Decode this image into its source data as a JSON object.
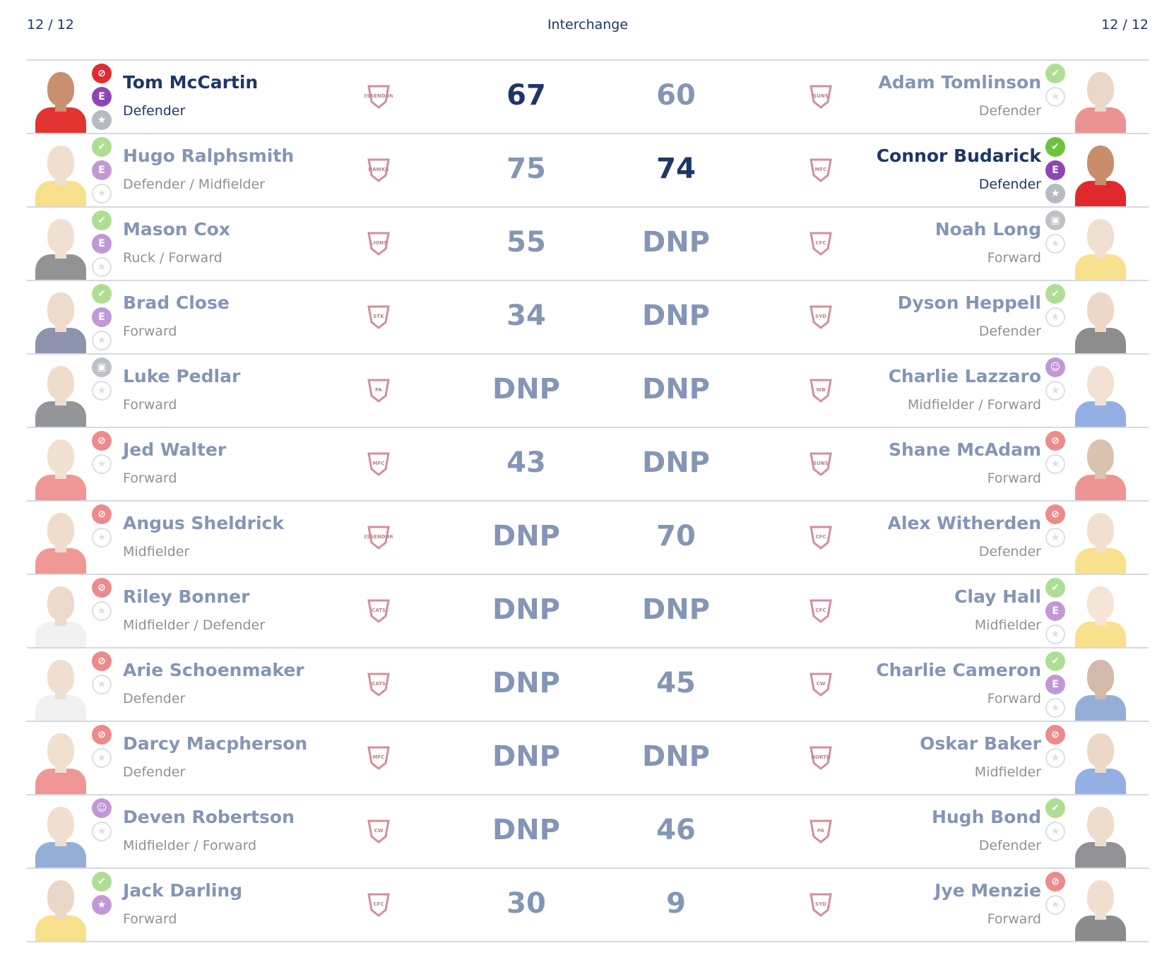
{
  "header": {
    "left_count": "12 / 12",
    "title": "Interchange",
    "right_count": "12 / 12"
  },
  "colors": {
    "navy": "#1e3668",
    "faded_text": "#8496b6",
    "faded_pos": "#8e9196",
    "green": "#6cc43c",
    "purple": "#8f45b3",
    "red": "#e02b30",
    "grey": "#8a8f99"
  },
  "rows": [
    {
      "left": {
        "name": "Tom McCartin",
        "position": "Defender",
        "faded": false,
        "icons": [
          "cross",
          "E",
          "star-grey"
        ],
        "team_logo": "essendon-logo",
        "team_text": "ESSENDON",
        "jersey": "#e33330",
        "head": "#c8906e"
      },
      "left_score": "67",
      "left_score_faded": false,
      "right_score": "60",
      "right_score_faded": true,
      "right": {
        "name": "Adam Tomlinson",
        "position": "Defender",
        "faded": true,
        "icons": [
          "thumb",
          "empty"
        ],
        "team_logo": "gold-coast-suns-logo",
        "team_text": "SUNS",
        "jersey": "#d92a2a",
        "head": "#d8b090"
      }
    },
    {
      "left": {
        "name": "Hugo Ralphsmith",
        "position": "Defender / Midfielder",
        "faded": true,
        "icons": [
          "thumb",
          "E",
          "empty"
        ],
        "team_logo": "hawthorn-logo",
        "team_text": "HAWKS",
        "jersey": "#f2c318",
        "head": "#e3c0a0"
      },
      "left_score": "75",
      "left_score_faded": true,
      "right_score": "74",
      "right_score_faded": false,
      "right": {
        "name": "Connor Budarick",
        "position": "Defender",
        "faded": false,
        "icons": [
          "thumb",
          "E",
          "star-grey"
        ],
        "team_logo": "melbourne-logo",
        "team_text": "MFC",
        "jersey": "#e0292d",
        "head": "#c98d6a"
      }
    },
    {
      "left": {
        "name": "Mason Cox",
        "position": "Ruck / Forward",
        "faded": true,
        "icons": [
          "thumb",
          "E",
          "empty"
        ],
        "team_logo": "brisbane-lions-logo",
        "team_text": "LIONS",
        "jersey": "#2a2a2a",
        "head": "#e2c2a5"
      },
      "left_score": "55",
      "left_score_faded": true,
      "right_score": "DNP",
      "right_score_faded": true,
      "right": {
        "name": "Noah Long",
        "position": "Forward",
        "faded": true,
        "icons": [
          "lock",
          "empty"
        ],
        "team_logo": "carlton-logo",
        "team_text": "CFC",
        "jersey": "#f0c419",
        "head": "#e3c2a3"
      }
    },
    {
      "left": {
        "name": "Brad Close",
        "position": "Forward",
        "faded": true,
        "icons": [
          "thumb",
          "E",
          "empty"
        ],
        "team_logo": "st-kilda-logo",
        "team_text": "STK",
        "jersey": "#1d2c5c",
        "head": "#dcb898"
      },
      "left_score": "34",
      "left_score_faded": true,
      "right_score": "DNP",
      "right_score_faded": true,
      "right": {
        "name": "Dyson Heppell",
        "position": "Defender",
        "faded": true,
        "icons": [
          "thumb",
          "empty"
        ],
        "team_logo": "sydney-swans-logo",
        "team_text": "SYD",
        "jersey": "#1e1e1e",
        "head": "#dcb292"
      }
    },
    {
      "left": {
        "name": "Luke Pedlar",
        "position": "Forward",
        "faded": true,
        "icons": [
          "lock",
          "empty"
        ],
        "team_logo": "port-adelaide-logo",
        "team_text": "PA",
        "jersey": "#2a2e36",
        "head": "#e0bc9b"
      },
      "left_score": "DNP",
      "left_score_faded": true,
      "right_score": "DNP",
      "right_score_faded": true,
      "right": {
        "name": "Charlie Lazzaro",
        "position": "Midfielder / Forward",
        "faded": true,
        "icons": [
          "person",
          "empty"
        ],
        "team_logo": "western-bulldogs-logo",
        "team_text": "WB",
        "jersey": "#2b62c9",
        "head": "#e6c6a8"
      }
    },
    {
      "left": {
        "name": "Jed Walter",
        "position": "Forward",
        "faded": true,
        "icons": [
          "cross",
          "empty"
        ],
        "team_logo": "melbourne-logo",
        "team_text": "MFC",
        "jersey": "#e22f2f",
        "head": "#e5c4a5"
      },
      "left_score": "43",
      "left_score_faded": true,
      "right_score": "DNP",
      "right_score_faded": true,
      "right": {
        "name": "Shane McAdam",
        "position": "Forward",
        "faded": true,
        "icons": [
          "cross",
          "empty"
        ],
        "team_logo": "gold-coast-suns-logo",
        "team_text": "SUNS",
        "jersey": "#de2c2c",
        "head": "#b98864"
      }
    },
    {
      "left": {
        "name": "Angus Sheldrick",
        "position": "Midfielder",
        "faded": true,
        "icons": [
          "cross",
          "empty"
        ],
        "team_logo": "essendon-logo",
        "team_text": "ESSENDON",
        "jersey": "#e33330",
        "head": "#e0bc9a"
      },
      "left_score": "DNP",
      "left_score_faded": true,
      "right_score": "70",
      "right_score_faded": true,
      "right": {
        "name": "Alex Witherden",
        "position": "Defender",
        "faded": true,
        "icons": [
          "cross",
          "empty"
        ],
        "team_logo": "carlton-logo",
        "team_text": "CFC",
        "jersey": "#f2c31c",
        "head": "#e4c3a4"
      }
    },
    {
      "left": {
        "name": "Riley Bonner",
        "position": "Midfielder / Defender",
        "faded": true,
        "icons": [
          "cross",
          "empty"
        ],
        "team_logo": "geelong-cats-logo",
        "team_text": "CATS",
        "jersey": "#e5e5e5",
        "head": "#dcb696"
      },
      "left_score": "DNP",
      "left_score_faded": true,
      "right_score": "DNP",
      "right_score_faded": true,
      "right": {
        "name": "Clay Hall",
        "position": "Midfielder",
        "faded": true,
        "icons": [
          "thumb",
          "E",
          "empty"
        ],
        "team_logo": "carlton-logo",
        "team_text": "CFC",
        "jersey": "#f2c31c",
        "head": "#ebccaf"
      }
    },
    {
      "left": {
        "name": "Arie Schoenmaker",
        "position": "Defender",
        "faded": true,
        "icons": [
          "cross",
          "empty"
        ],
        "team_logo": "geelong-cats-logo",
        "team_text": "CATS",
        "jersey": "#e5e5e5",
        "head": "#e2c0a0"
      },
      "left_score": "DNP",
      "left_score_faded": true,
      "right_score": "45",
      "right_score_faded": true,
      "right": {
        "name": "Charlie Cameron",
        "position": "Forward",
        "faded": true,
        "icons": [
          "thumb",
          "E",
          "empty"
        ],
        "team_logo": "collingwood-logo",
        "team_text": "CW",
        "jersey": "#2c5fb0",
        "head": "#a87657"
      }
    },
    {
      "left": {
        "name": "Darcy Macpherson",
        "position": "Defender",
        "faded": true,
        "icons": [
          "cross",
          "empty"
        ],
        "team_logo": "melbourne-logo",
        "team_text": "MFC",
        "jersey": "#e22f2f",
        "head": "#e3c2a3"
      },
      "left_score": "DNP",
      "left_score_faded": true,
      "right_score": "DNP",
      "right_score_faded": true,
      "right": {
        "name": "Oskar Baker",
        "position": "Midfielder",
        "faded": true,
        "icons": [
          "cross",
          "empty"
        ],
        "team_logo": "north-melbourne-logo",
        "team_text": "NORTH",
        "jersey": "#2b62c9",
        "head": "#d9b291"
      }
    },
    {
      "left": {
        "name": "Deven Robertson",
        "position": "Midfielder / Forward",
        "faded": true,
        "icons": [
          "person",
          "empty"
        ],
        "team_logo": "collingwood-logo",
        "team_text": "CW",
        "jersey": "#2c5fb0",
        "head": "#e2c0a0"
      },
      "left_score": "DNP",
      "left_score_faded": true,
      "right_score": "46",
      "right_score_faded": true,
      "right": {
        "name": "Hugh Bond",
        "position": "Defender",
        "faded": true,
        "icons": [
          "thumb",
          "empty"
        ],
        "team_logo": "port-adelaide-logo",
        "team_text": "PA",
        "jersey": "#23272e",
        "head": "#e0bc9b"
      }
    },
    {
      "left": {
        "name": "Jack Darling",
        "position": "Forward",
        "faded": true,
        "icons": [
          "thumb",
          "star-purple"
        ],
        "team_logo": "carlton-logo",
        "team_text": "CFC",
        "jersey": "#f2c31c",
        "head": "#d9b090"
      },
      "left_score": "30",
      "left_score_faded": true,
      "right_score": "9",
      "right_score_faded": true,
      "right": {
        "name": "Jye Menzie",
        "position": "Forward",
        "faded": true,
        "icons": [
          "cross",
          "empty"
        ],
        "team_logo": "sydney-swans-logo",
        "team_text": "SYD",
        "jersey": "#1c1c1c",
        "head": "#e2c0a0"
      }
    }
  ]
}
